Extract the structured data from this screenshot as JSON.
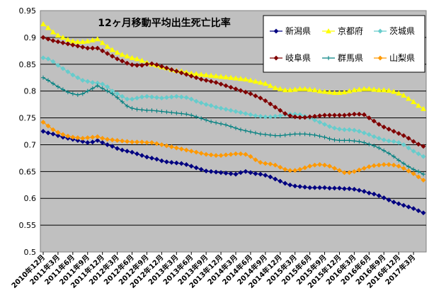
{
  "chart_data": {
    "type": "line",
    "title": "12ヶ月移動平均出生死亡比率",
    "xlabel": "",
    "ylabel": "",
    "ylim": [
      0.5,
      0.95
    ],
    "yticks": [
      "0.5",
      "0.55",
      "0.6",
      "0.65",
      "0.7",
      "0.75",
      "0.8",
      "0.85",
      "0.9",
      "0.95"
    ],
    "grid": true,
    "legend_position": "top-right",
    "x_tick_labels": [
      "2010年12月",
      "2011年3月",
      "2011年6月",
      "2011年9月",
      "2011年12月",
      "2012年3月",
      "2012年6月",
      "2012年9月",
      "2012年12月",
      "2013年3月",
      "2013年6月",
      "2013年9月",
      "2013年12月",
      "2014年3月",
      "2014年6月",
      "2014年9月",
      "2014年12月",
      "2015年3月",
      "2015年6月",
      "2015年9月",
      "2015年12月",
      "2016年3月",
      "2016年6月",
      "2016年9月",
      "2016年12月",
      "2017年3月"
    ],
    "x": [
      "2010-12",
      "2011-01",
      "2011-02",
      "2011-03",
      "2011-04",
      "2011-05",
      "2011-06",
      "2011-07",
      "2011-08",
      "2011-09",
      "2011-10",
      "2011-11",
      "2011-12",
      "2012-01",
      "2012-02",
      "2012-03",
      "2012-04",
      "2012-05",
      "2012-06",
      "2012-07",
      "2012-08",
      "2012-09",
      "2012-10",
      "2012-11",
      "2012-12",
      "2013-01",
      "2013-02",
      "2013-03",
      "2013-04",
      "2013-05",
      "2013-06",
      "2013-07",
      "2013-08",
      "2013-09",
      "2013-10",
      "2013-11",
      "2013-12",
      "2014-01",
      "2014-02",
      "2014-03",
      "2014-04",
      "2014-05",
      "2014-06",
      "2014-07",
      "2014-08",
      "2014-09",
      "2014-10",
      "2014-11",
      "2014-12",
      "2015-01",
      "2015-02",
      "2015-03",
      "2015-04",
      "2015-05",
      "2015-06",
      "2015-07",
      "2015-08",
      "2015-09",
      "2015-10",
      "2015-11",
      "2015-12",
      "2016-01",
      "2016-02",
      "2016-03",
      "2016-04",
      "2016-05",
      "2016-06",
      "2016-07",
      "2016-08",
      "2016-09",
      "2016-10",
      "2016-11",
      "2016-12",
      "2017-01",
      "2017-02",
      "2017-03",
      "2017-04",
      "2017-05"
    ],
    "series": [
      {
        "name": "新潟県",
        "color": "#000080",
        "marker": "diamond",
        "values": [
          0.725,
          0.722,
          0.72,
          0.717,
          0.714,
          0.712,
          0.71,
          0.708,
          0.706,
          0.704,
          0.705,
          0.708,
          0.704,
          0.7,
          0.697,
          0.693,
          0.69,
          0.688,
          0.686,
          0.683,
          0.68,
          0.677,
          0.675,
          0.673,
          0.67,
          0.668,
          0.667,
          0.666,
          0.665,
          0.663,
          0.66,
          0.657,
          0.654,
          0.651,
          0.65,
          0.649,
          0.648,
          0.647,
          0.646,
          0.645,
          0.648,
          0.65,
          0.648,
          0.646,
          0.645,
          0.643,
          0.64,
          0.636,
          0.632,
          0.628,
          0.625,
          0.623,
          0.622,
          0.621,
          0.62,
          0.62,
          0.62,
          0.62,
          0.619,
          0.619,
          0.619,
          0.618,
          0.618,
          0.617,
          0.615,
          0.613,
          0.61,
          0.608,
          0.605,
          0.601,
          0.597,
          0.593,
          0.59,
          0.587,
          0.584,
          0.581,
          0.577,
          0.573
        ]
      },
      {
        "name": "京都府",
        "color": "#ffff00",
        "marker": "triangle",
        "values": [
          0.925,
          0.918,
          0.91,
          0.904,
          0.9,
          0.896,
          0.893,
          0.892,
          0.892,
          0.893,
          0.895,
          0.897,
          0.89,
          0.883,
          0.877,
          0.872,
          0.868,
          0.865,
          0.862,
          0.86,
          0.857,
          0.853,
          0.85,
          0.848,
          0.845,
          0.843,
          0.84,
          0.838,
          0.837,
          0.835,
          0.833,
          0.832,
          0.831,
          0.83,
          0.829,
          0.828,
          0.827,
          0.826,
          0.825,
          0.824,
          0.823,
          0.822,
          0.82,
          0.818,
          0.816,
          0.814,
          0.81,
          0.806,
          0.804,
          0.802,
          0.802,
          0.803,
          0.804,
          0.804,
          0.803,
          0.802,
          0.8,
          0.799,
          0.798,
          0.797,
          0.797,
          0.798,
          0.8,
          0.802,
          0.803,
          0.804,
          0.804,
          0.803,
          0.802,
          0.802,
          0.801,
          0.799,
          0.796,
          0.792,
          0.786,
          0.78,
          0.773,
          0.767
        ]
      },
      {
        "name": "茨城県",
        "color": "#66cccc",
        "marker": "diamond",
        "values": [
          0.862,
          0.86,
          0.855,
          0.848,
          0.842,
          0.836,
          0.83,
          0.825,
          0.82,
          0.818,
          0.816,
          0.815,
          0.813,
          0.808,
          0.8,
          0.795,
          0.79,
          0.785,
          0.785,
          0.787,
          0.789,
          0.79,
          0.789,
          0.788,
          0.787,
          0.788,
          0.789,
          0.79,
          0.789,
          0.788,
          0.785,
          0.781,
          0.778,
          0.775,
          0.773,
          0.77,
          0.768,
          0.766,
          0.764,
          0.762,
          0.76,
          0.758,
          0.756,
          0.754,
          0.753,
          0.752,
          0.752,
          0.753,
          0.754,
          0.756,
          0.757,
          0.757,
          0.756,
          0.753,
          0.75,
          0.746,
          0.742,
          0.738,
          0.734,
          0.731,
          0.729,
          0.728,
          0.728,
          0.727,
          0.725,
          0.722,
          0.719,
          0.715,
          0.712,
          0.709,
          0.707,
          0.706,
          0.704,
          0.7,
          0.694,
          0.688,
          0.683,
          0.678
        ]
      },
      {
        "name": "岐阜県",
        "color": "#800000",
        "marker": "diamond",
        "values": [
          0.9,
          0.897,
          0.894,
          0.892,
          0.89,
          0.888,
          0.886,
          0.884,
          0.882,
          0.88,
          0.88,
          0.88,
          0.875,
          0.87,
          0.865,
          0.86,
          0.856,
          0.852,
          0.849,
          0.848,
          0.848,
          0.85,
          0.851,
          0.849,
          0.846,
          0.843,
          0.84,
          0.837,
          0.834,
          0.831,
          0.828,
          0.825,
          0.822,
          0.82,
          0.818,
          0.816,
          0.813,
          0.81,
          0.807,
          0.804,
          0.801,
          0.798,
          0.795,
          0.791,
          0.787,
          0.782,
          0.776,
          0.77,
          0.764,
          0.758,
          0.754,
          0.752,
          0.751,
          0.751,
          0.752,
          0.753,
          0.754,
          0.755,
          0.755,
          0.755,
          0.755,
          0.755,
          0.756,
          0.757,
          0.757,
          0.756,
          0.75,
          0.744,
          0.738,
          0.733,
          0.729,
          0.725,
          0.721,
          0.717,
          0.712,
          0.706,
          0.701,
          0.697
        ]
      },
      {
        "name": "群馬県",
        "color": "#008080",
        "marker": "plus",
        "values": [
          0.825,
          0.82,
          0.814,
          0.808,
          0.803,
          0.798,
          0.795,
          0.793,
          0.795,
          0.8,
          0.805,
          0.81,
          0.805,
          0.8,
          0.795,
          0.788,
          0.78,
          0.772,
          0.768,
          0.766,
          0.765,
          0.764,
          0.764,
          0.763,
          0.762,
          0.761,
          0.76,
          0.759,
          0.758,
          0.757,
          0.755,
          0.752,
          0.749,
          0.746,
          0.743,
          0.741,
          0.739,
          0.737,
          0.734,
          0.731,
          0.728,
          0.726,
          0.724,
          0.722,
          0.72,
          0.719,
          0.718,
          0.717,
          0.717,
          0.718,
          0.719,
          0.72,
          0.72,
          0.72,
          0.719,
          0.718,
          0.716,
          0.714,
          0.711,
          0.709,
          0.708,
          0.708,
          0.708,
          0.707,
          0.706,
          0.704,
          0.701,
          0.698,
          0.694,
          0.689,
          0.684,
          0.678,
          0.671,
          0.665,
          0.659,
          0.654,
          0.65,
          0.645
        ]
      },
      {
        "name": "山梨県",
        "color": "#ff9900",
        "marker": "diamond",
        "values": [
          0.742,
          0.735,
          0.728,
          0.723,
          0.719,
          0.716,
          0.714,
          0.713,
          0.712,
          0.713,
          0.714,
          0.715,
          0.712,
          0.71,
          0.709,
          0.708,
          0.707,
          0.706,
          0.705,
          0.705,
          0.705,
          0.704,
          0.704,
          0.702,
          0.7,
          0.698,
          0.696,
          0.694,
          0.692,
          0.69,
          0.688,
          0.686,
          0.684,
          0.682,
          0.681,
          0.68,
          0.68,
          0.681,
          0.682,
          0.683,
          0.683,
          0.682,
          0.678,
          0.672,
          0.667,
          0.665,
          0.664,
          0.662,
          0.658,
          0.654,
          0.652,
          0.652,
          0.654,
          0.657,
          0.66,
          0.662,
          0.663,
          0.662,
          0.66,
          0.656,
          0.652,
          0.648,
          0.648,
          0.65,
          0.653,
          0.656,
          0.659,
          0.661,
          0.662,
          0.663,
          0.663,
          0.662,
          0.66,
          0.656,
          0.651,
          0.646,
          0.64,
          0.634
        ]
      }
    ]
  }
}
